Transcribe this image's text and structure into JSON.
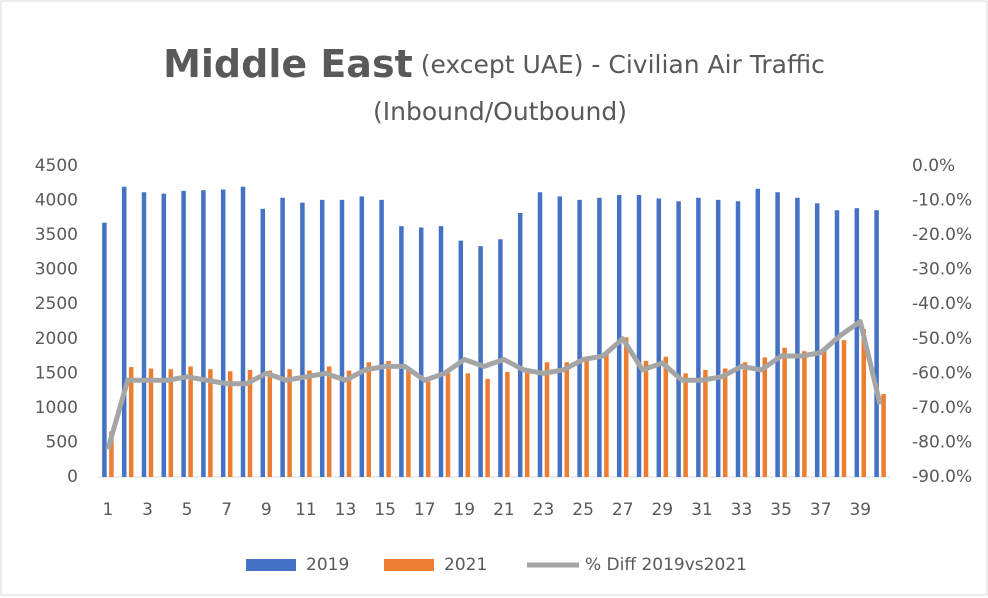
{
  "chart_data": {
    "type": "bar_line",
    "title": "Middle East",
    "title_suffix": "(except UAE) - Civilian Air Traffic",
    "subtitle": "(Inbound/Outbound)",
    "categories": [
      1,
      null,
      3,
      null,
      5,
      null,
      7,
      null,
      9,
      null,
      11,
      null,
      13,
      null,
      15,
      null,
      17,
      null,
      19,
      null,
      21,
      null,
      23,
      null,
      25,
      null,
      27,
      null,
      29,
      null,
      31,
      null,
      33,
      null,
      35,
      null,
      37,
      null,
      39,
      null
    ],
    "series": [
      {
        "name": "2019",
        "color": "#4472c4",
        "kind": "bar",
        "values": [
          3680,
          4200,
          4120,
          4100,
          4140,
          4150,
          4160,
          4200,
          3880,
          4040,
          3970,
          4010,
          4010,
          4060,
          4010,
          3630,
          3610,
          3630,
          3420,
          3340,
          3440,
          3820,
          4120,
          4060,
          4010,
          4040,
          4080,
          4080,
          4030,
          3990,
          4040,
          4010,
          3990,
          4170,
          4120,
          4040,
          3960,
          3860,
          3890,
          3860
        ]
      },
      {
        "name": "2021",
        "color": "#ed7d31",
        "kind": "bar",
        "values": [
          660,
          1590,
          1570,
          1560,
          1600,
          1560,
          1530,
          1550,
          1540,
          1560,
          1540,
          1600,
          1540,
          1660,
          1680,
          1560,
          1380,
          1500,
          1500,
          1420,
          1520,
          1560,
          1660,
          1660,
          1700,
          1780,
          2020,
          1680,
          1740,
          1500,
          1550,
          1570,
          1660,
          1730,
          1870,
          1820,
          1820,
          1980,
          2140,
          1200
        ]
      },
      {
        "name": "% Diff 2019vs2021",
        "color": "#a5a5a5",
        "kind": "line",
        "axis": "y2",
        "values": [
          -82,
          -62,
          -62,
          -62,
          -61,
          -62,
          -63,
          -63,
          -60,
          -62,
          -61,
          -60,
          -62,
          -59,
          -58,
          -58,
          -62,
          -60,
          -56,
          -58,
          -56,
          -59,
          -60,
          -59,
          -56,
          -55,
          -50,
          -59,
          -57,
          -62,
          -62,
          -61,
          -58,
          -59,
          -55,
          -55,
          -54,
          -49,
          -45,
          -69
        ]
      }
    ],
    "ylim": [
      0,
      4500
    ],
    "yticks": [
      0,
      500,
      1000,
      1500,
      2000,
      2500,
      3000,
      3500,
      4000,
      4500
    ],
    "y2lim": [
      -90,
      0
    ],
    "y2ticks": [
      {
        "value": 0,
        "label": "0.0%"
      },
      {
        "value": -10,
        "label": "-10.0%"
      },
      {
        "value": -20,
        "label": "-20.0%"
      },
      {
        "value": -30,
        "label": "-30.0%"
      },
      {
        "value": -40,
        "label": "-40.0%"
      },
      {
        "value": -50,
        "label": "-50.0%"
      },
      {
        "value": -60,
        "label": "-60.0%"
      },
      {
        "value": -70,
        "label": "-70.0%"
      },
      {
        "value": -80,
        "label": "-80.0%"
      },
      {
        "value": -90,
        "label": "-90.0%"
      }
    ],
    "grid": false,
    "legend": "bottom"
  }
}
